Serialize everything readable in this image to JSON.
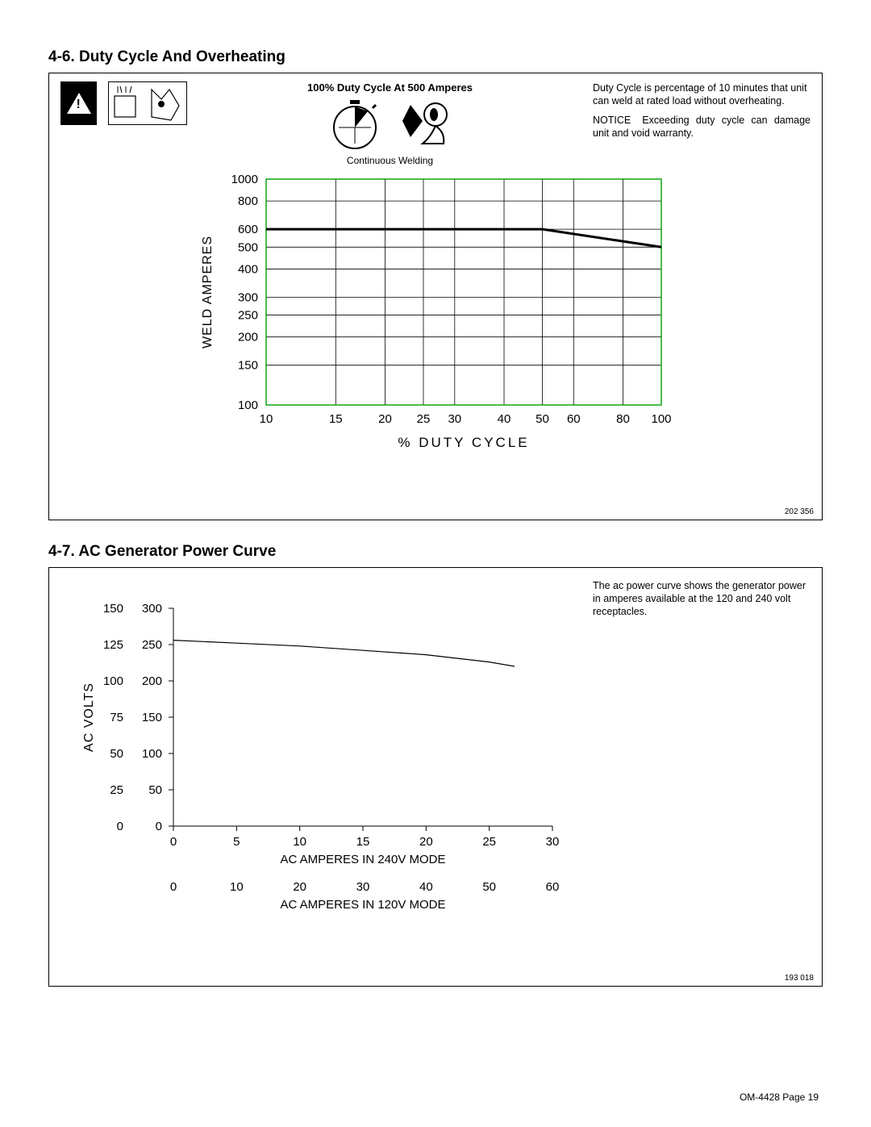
{
  "section1": {
    "title": "4-6.   Duty Cycle And Overheating",
    "center_heading": "100% Duty Cycle At 500 Amperes",
    "center_sub": "Continuous Welding",
    "note1": "Duty Cycle is percentage of 10 minutes that unit can weld at rated load without overheating.",
    "notice_label": "NOTICE",
    "note2": "Exceeding duty cycle can damage unit and void warranty.",
    "fig_num": "202 356",
    "chart": {
      "type": "line-loglog",
      "x_ticks": [
        10,
        15,
        20,
        25,
        30,
        40,
        50,
        60,
        80,
        100
      ],
      "y_ticks": [
        100,
        150,
        200,
        250,
        300,
        400,
        500,
        600,
        800,
        1000
      ],
      "xlim": [
        10,
        100
      ],
      "ylim": [
        100,
        1000
      ],
      "x_label": "% DUTY CYCLE",
      "y_label": "WELD AMPERES",
      "grid_color": "#000000",
      "border_color": "#00a000",
      "line_color": "#000000",
      "line_width": 3,
      "data": [
        {
          "x": 10,
          "y": 600
        },
        {
          "x": 50,
          "y": 600
        },
        {
          "x": 100,
          "y": 500
        }
      ]
    }
  },
  "section2": {
    "title": "4-7.   AC Generator Power Curve",
    "note1": "The ac power curve shows the generator power in amperes available at the 120 and 240 volt receptacles.",
    "fig_num": "193 018",
    "chart": {
      "type": "line-linear-dualx",
      "y_ticks_left": [
        0,
        25,
        50,
        75,
        100,
        125,
        150
      ],
      "y_ticks_right": [
        0,
        50,
        100,
        150,
        200,
        250,
        300
      ],
      "x_ticks_240": [
        0,
        5,
        10,
        15,
        20,
        25,
        30
      ],
      "x_ticks_120": [
        0,
        10,
        20,
        30,
        40,
        50,
        60
      ],
      "x_label_240": "AC AMPERES IN 240V MODE",
      "x_label_120": "AC AMPERES IN 120V MODE",
      "y_label": "AC VOLTS",
      "xlim": [
        0,
        30
      ],
      "ylim": [
        0,
        150
      ],
      "line_color": "#000000",
      "line_width": 1.2,
      "data": [
        {
          "x": 0,
          "y": 128
        },
        {
          "x": 5,
          "y": 126
        },
        {
          "x": 10,
          "y": 124
        },
        {
          "x": 15,
          "y": 121
        },
        {
          "x": 20,
          "y": 118
        },
        {
          "x": 25,
          "y": 113
        },
        {
          "x": 27,
          "y": 110
        }
      ]
    }
  },
  "footer": "OM-4428 Page 19"
}
